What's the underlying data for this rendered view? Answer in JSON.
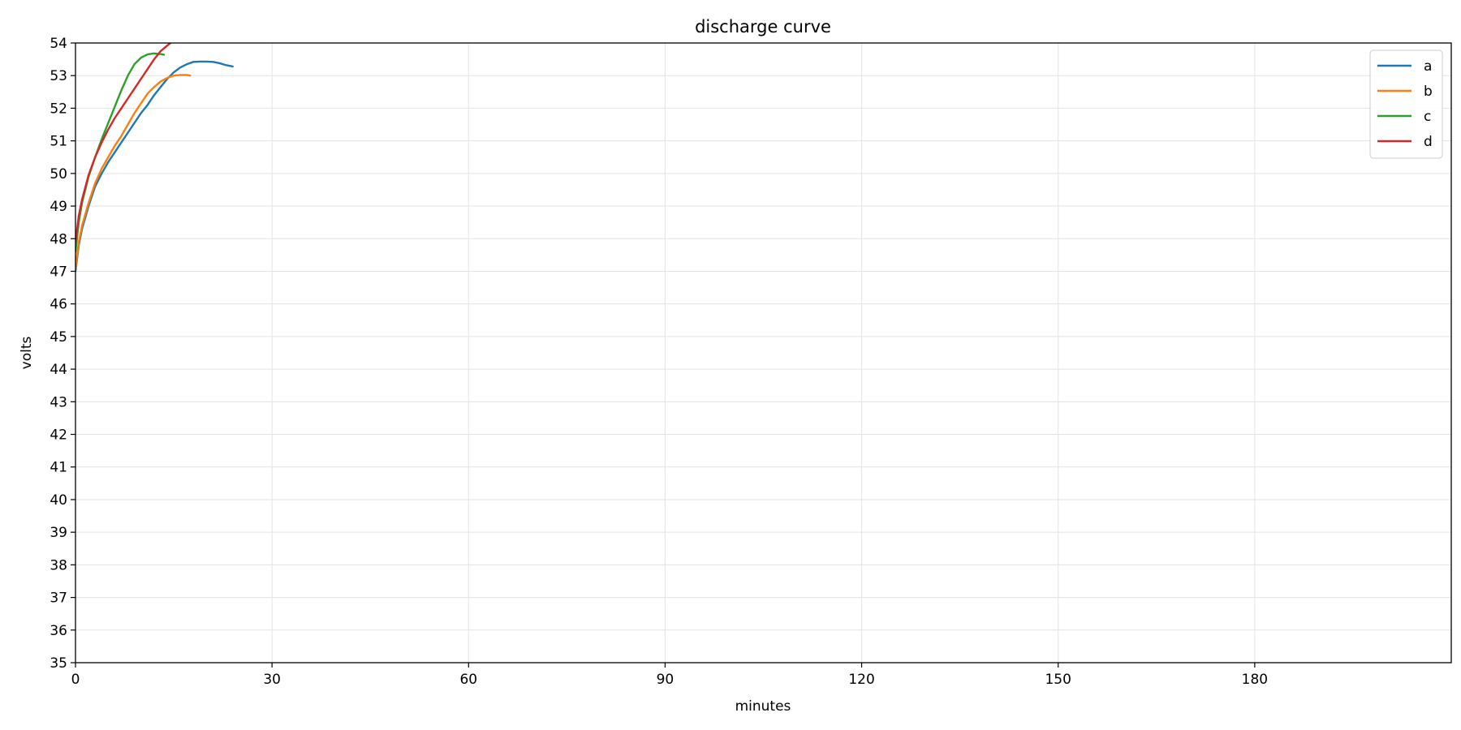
{
  "chart_data": {
    "type": "line",
    "title": "discharge curve",
    "xlabel": "minutes",
    "ylabel": "volts",
    "xlim": [
      0,
      210
    ],
    "ylim": [
      35,
      54
    ],
    "xticks": [
      0,
      30,
      60,
      90,
      120,
      150,
      180
    ],
    "yticks": [
      35,
      36,
      37,
      38,
      39,
      40,
      41,
      42,
      43,
      44,
      45,
      46,
      47,
      48,
      49,
      50,
      51,
      52,
      53,
      54
    ],
    "grid": true,
    "legend_position": "top-right",
    "series": [
      {
        "name": "a",
        "color": "#1f77b4",
        "x": [
          0,
          0.5,
          1,
          2,
          3,
          4,
          5,
          6,
          7,
          8,
          9,
          10,
          11,
          12,
          13,
          14,
          15,
          16,
          17,
          18,
          19,
          20,
          21,
          22,
          23,
          24
        ],
        "y": [
          47.0,
          47.8,
          48.3,
          49.0,
          49.6,
          50.0,
          50.35,
          50.65,
          50.95,
          51.25,
          51.55,
          51.85,
          52.1,
          52.4,
          52.65,
          52.9,
          53.1,
          53.25,
          53.35,
          53.42,
          53.43,
          53.43,
          53.42,
          53.38,
          53.32,
          53.28
        ]
      },
      {
        "name": "b",
        "color": "#ff7f0e",
        "x": [
          0,
          0.5,
          1,
          2,
          3,
          4,
          5,
          6,
          7,
          8,
          9,
          10,
          11,
          12,
          13,
          14,
          15,
          16,
          17,
          17.5
        ],
        "y": [
          47.1,
          47.9,
          48.4,
          49.1,
          49.7,
          50.15,
          50.5,
          50.85,
          51.15,
          51.5,
          51.85,
          52.15,
          52.45,
          52.65,
          52.82,
          52.93,
          53.0,
          53.02,
          53.02,
          53.0
        ]
      },
      {
        "name": "c",
        "color": "#2ca02c",
        "x": [
          0,
          0.5,
          1,
          2,
          3,
          4,
          5,
          6,
          7,
          8,
          9,
          10,
          11,
          12,
          12.5,
          13,
          13.5
        ],
        "y": [
          47.6,
          48.5,
          49.1,
          49.9,
          50.5,
          51.05,
          51.55,
          52.05,
          52.55,
          53.0,
          53.35,
          53.55,
          53.65,
          53.68,
          53.67,
          53.66,
          53.64
        ]
      },
      {
        "name": "d",
        "color": "#d62728",
        "x": [
          0,
          0.5,
          1,
          2,
          3,
          4,
          5,
          6,
          7,
          8,
          9,
          10,
          11,
          12,
          13,
          14,
          14.5
        ],
        "y": [
          47.9,
          48.7,
          49.2,
          49.95,
          50.5,
          50.95,
          51.35,
          51.7,
          52.0,
          52.3,
          52.6,
          52.9,
          53.2,
          53.5,
          53.75,
          53.92,
          54.0
        ]
      }
    ]
  }
}
